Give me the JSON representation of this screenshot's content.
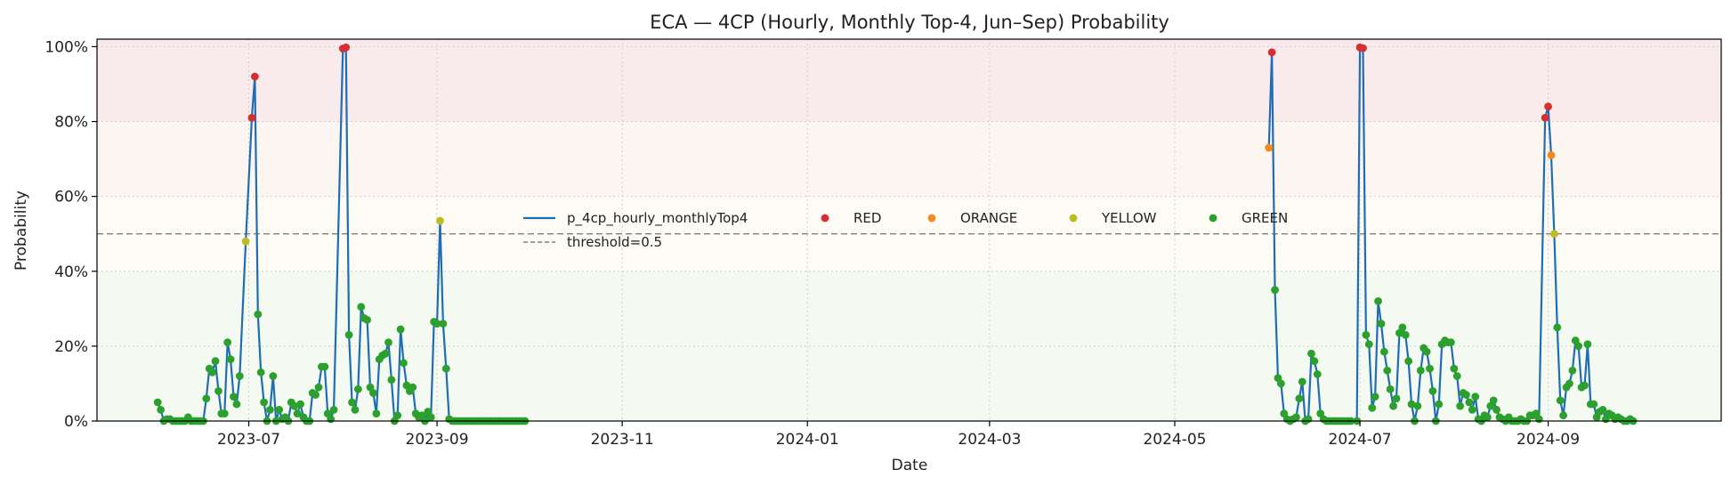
{
  "chart_data": {
    "type": "scatter",
    "title": "ECA — 4CP (Hourly, Monthly Top-4, Jun–Sep) Probability",
    "xlabel": "Date",
    "ylabel": "Probability",
    "xlim": [
      "2023-05-12",
      "2024-10-28"
    ],
    "ylim": [
      0,
      1.02
    ],
    "grid": true,
    "legend_position": "center",
    "x_ticks": [
      {
        "date": "2023-07-01",
        "label": "2023-07"
      },
      {
        "date": "2023-09-01",
        "label": "2023-09"
      },
      {
        "date": "2023-11-01",
        "label": "2023-11"
      },
      {
        "date": "2024-01-01",
        "label": "2024-01"
      },
      {
        "date": "2024-03-01",
        "label": "2024-03"
      },
      {
        "date": "2024-05-01",
        "label": "2024-05"
      },
      {
        "date": "2024-07-01",
        "label": "2024-07"
      },
      {
        "date": "2024-09-01",
        "label": "2024-09"
      }
    ],
    "y_ticks": [
      {
        "value": 0,
        "label": "0%"
      },
      {
        "value": 0.2,
        "label": "20%"
      },
      {
        "value": 0.4,
        "label": "40%"
      },
      {
        "value": 0.6,
        "label": "60%"
      },
      {
        "value": 0.8,
        "label": "80%"
      },
      {
        "value": 1.0,
        "label": "100%"
      }
    ],
    "bands": [
      {
        "from": 0.0,
        "to": 0.4,
        "color": "#f4f9f2"
      },
      {
        "from": 0.4,
        "to": 0.6,
        "color": "#fdfbf3"
      },
      {
        "from": 0.6,
        "to": 0.8,
        "color": "#fdf6f0"
      },
      {
        "from": 0.8,
        "to": 1.02,
        "color": "#f9ebec"
      }
    ],
    "threshold": {
      "value": 0.5,
      "label": "threshold=0.5",
      "color": "#808080"
    },
    "line_series": {
      "name": "p_4cp_hourly_monthlyTop4",
      "color": "#1f6db5"
    },
    "categories_legend": [
      {
        "name": "RED",
        "color": "#d62f2f"
      },
      {
        "name": "ORANGE",
        "color": "#f5891f"
      },
      {
        "name": "YELLOW",
        "color": "#bcbd22"
      },
      {
        "name": "GREEN",
        "color": "#2ca02c"
      }
    ],
    "points": [
      [
        "2023-06-01",
        0.05
      ],
      [
        "2023-06-02",
        0.03
      ],
      [
        "2023-06-03",
        0.0
      ],
      [
        "2023-06-04",
        0.005
      ],
      [
        "2023-06-05",
        0.005
      ],
      [
        "2023-06-06",
        0.0
      ],
      [
        "2023-06-07",
        0.0
      ],
      [
        "2023-06-08",
        0.0
      ],
      [
        "2023-06-09",
        0.0
      ],
      [
        "2023-06-10",
        0.0
      ],
      [
        "2023-06-11",
        0.01
      ],
      [
        "2023-06-12",
        0.0
      ],
      [
        "2023-06-13",
        0.0
      ],
      [
        "2023-06-14",
        0.0
      ],
      [
        "2023-06-15",
        0.0
      ],
      [
        "2023-06-16",
        0.0
      ],
      [
        "2023-06-17",
        0.06
      ],
      [
        "2023-06-18",
        0.14
      ],
      [
        "2023-06-19",
        0.13
      ],
      [
        "2023-06-20",
        0.16
      ],
      [
        "2023-06-21",
        0.08
      ],
      [
        "2023-06-22",
        0.02
      ],
      [
        "2023-06-23",
        0.02
      ],
      [
        "2023-06-24",
        0.21
      ],
      [
        "2023-06-25",
        0.165
      ],
      [
        "2023-06-26",
        0.065
      ],
      [
        "2023-06-27",
        0.045
      ],
      [
        "2023-06-28",
        0.12
      ],
      [
        "2023-06-30",
        0.48
      ],
      [
        "2023-07-02",
        0.81
      ],
      [
        "2023-07-03",
        0.92
      ],
      [
        "2023-07-04",
        0.285
      ],
      [
        "2023-07-05",
        0.13
      ],
      [
        "2023-07-06",
        0.05
      ],
      [
        "2023-07-07",
        0.0
      ],
      [
        "2023-07-08",
        0.03
      ],
      [
        "2023-07-09",
        0.12
      ],
      [
        "2023-07-10",
        0.0
      ],
      [
        "2023-07-11",
        0.03
      ],
      [
        "2023-07-12",
        0.005
      ],
      [
        "2023-07-13",
        0.01
      ],
      [
        "2023-07-14",
        0.0
      ],
      [
        "2023-07-15",
        0.05
      ],
      [
        "2023-07-16",
        0.04
      ],
      [
        "2023-07-17",
        0.02
      ],
      [
        "2023-07-18",
        0.045
      ],
      [
        "2023-07-19",
        0.01
      ],
      [
        "2023-07-20",
        0.0
      ],
      [
        "2023-07-21",
        0.0
      ],
      [
        "2023-07-22",
        0.075
      ],
      [
        "2023-07-23",
        0.07
      ],
      [
        "2023-07-24",
        0.09
      ],
      [
        "2023-07-25",
        0.145
      ],
      [
        "2023-07-26",
        0.145
      ],
      [
        "2023-07-27",
        0.02
      ],
      [
        "2023-07-28",
        0.005
      ],
      [
        "2023-07-29",
        0.03
      ],
      [
        "2023-08-01",
        0.995
      ],
      [
        "2023-08-02",
        0.998
      ],
      [
        "2023-08-03",
        0.23
      ],
      [
        "2023-08-04",
        0.05
      ],
      [
        "2023-08-05",
        0.03
      ],
      [
        "2023-08-06",
        0.085
      ],
      [
        "2023-08-07",
        0.305
      ],
      [
        "2023-08-08",
        0.275
      ],
      [
        "2023-08-09",
        0.27
      ],
      [
        "2023-08-10",
        0.09
      ],
      [
        "2023-08-11",
        0.075
      ],
      [
        "2023-08-12",
        0.02
      ],
      [
        "2023-08-13",
        0.165
      ],
      [
        "2023-08-14",
        0.175
      ],
      [
        "2023-08-15",
        0.18
      ],
      [
        "2023-08-16",
        0.21
      ],
      [
        "2023-08-17",
        0.11
      ],
      [
        "2023-08-18",
        0.0
      ],
      [
        "2023-08-19",
        0.015
      ],
      [
        "2023-08-20",
        0.245
      ],
      [
        "2023-08-21",
        0.155
      ],
      [
        "2023-08-22",
        0.095
      ],
      [
        "2023-08-23",
        0.08
      ],
      [
        "2023-08-24",
        0.09
      ],
      [
        "2023-08-25",
        0.02
      ],
      [
        "2023-08-26",
        0.01
      ],
      [
        "2023-08-27",
        0.015
      ],
      [
        "2023-08-28",
        0.0
      ],
      [
        "2023-08-29",
        0.025
      ],
      [
        "2023-08-30",
        0.01
      ],
      [
        "2023-08-31",
        0.265
      ],
      [
        "2023-09-01",
        0.26
      ],
      [
        "2023-09-02",
        0.535
      ],
      [
        "2023-09-03",
        0.26
      ],
      [
        "2023-09-04",
        0.14
      ],
      [
        "2023-09-05",
        0.005
      ],
      [
        "2023-09-06",
        0.0
      ],
      [
        "2023-09-07",
        0.0
      ],
      [
        "2023-09-08",
        0.0
      ],
      [
        "2023-09-09",
        0.0
      ],
      [
        "2023-09-10",
        0.0
      ],
      [
        "2023-09-11",
        0.0
      ],
      [
        "2023-09-12",
        0.0
      ],
      [
        "2023-09-13",
        0.0
      ],
      [
        "2023-09-14",
        0.0
      ],
      [
        "2023-09-15",
        0.0
      ],
      [
        "2023-09-16",
        0.0
      ],
      [
        "2023-09-17",
        0.0
      ],
      [
        "2023-09-18",
        0.0
      ],
      [
        "2023-09-19",
        0.0
      ],
      [
        "2023-09-20",
        0.0
      ],
      [
        "2023-09-21",
        0.0
      ],
      [
        "2023-09-22",
        0.0
      ],
      [
        "2023-09-23",
        0.0
      ],
      [
        "2023-09-24",
        0.0
      ],
      [
        "2023-09-25",
        0.0
      ],
      [
        "2023-09-26",
        0.0
      ],
      [
        "2023-09-27",
        0.0
      ],
      [
        "2023-09-28",
        0.0
      ],
      [
        "2023-09-29",
        0.0
      ],
      [
        "2023-09-30",
        0.0
      ],
      [
        "2024-06-01",
        0.73
      ],
      [
        "2024-06-02",
        0.985
      ],
      [
        "2024-06-03",
        0.35
      ],
      [
        "2024-06-04",
        0.115
      ],
      [
        "2024-06-05",
        0.1
      ],
      [
        "2024-06-06",
        0.02
      ],
      [
        "2024-06-07",
        0.005
      ],
      [
        "2024-06-08",
        0.0
      ],
      [
        "2024-06-09",
        0.005
      ],
      [
        "2024-06-10",
        0.01
      ],
      [
        "2024-06-11",
        0.06
      ],
      [
        "2024-06-12",
        0.105
      ],
      [
        "2024-06-13",
        0.0
      ],
      [
        "2024-06-14",
        0.005
      ],
      [
        "2024-06-15",
        0.18
      ],
      [
        "2024-06-16",
        0.16
      ],
      [
        "2024-06-17",
        0.125
      ],
      [
        "2024-06-18",
        0.02
      ],
      [
        "2024-06-19",
        0.005
      ],
      [
        "2024-06-20",
        0.0
      ],
      [
        "2024-06-21",
        0.0
      ],
      [
        "2024-06-22",
        0.0
      ],
      [
        "2024-06-23",
        0.0
      ],
      [
        "2024-06-24",
        0.0
      ],
      [
        "2024-06-25",
        0.0
      ],
      [
        "2024-06-26",
        0.0
      ],
      [
        "2024-06-27",
        0.0
      ],
      [
        "2024-06-28",
        0.0
      ],
      [
        "2024-06-30",
        0.0
      ],
      [
        "2024-07-01",
        0.998
      ],
      [
        "2024-07-02",
        0.996
      ],
      [
        "2024-07-03",
        0.23
      ],
      [
        "2024-07-04",
        0.205
      ],
      [
        "2024-07-05",
        0.035
      ],
      [
        "2024-07-06",
        0.065
      ],
      [
        "2024-07-07",
        0.32
      ],
      [
        "2024-07-08",
        0.26
      ],
      [
        "2024-07-09",
        0.185
      ],
      [
        "2024-07-10",
        0.135
      ],
      [
        "2024-07-11",
        0.085
      ],
      [
        "2024-07-12",
        0.04
      ],
      [
        "2024-07-13",
        0.06
      ],
      [
        "2024-07-14",
        0.235
      ],
      [
        "2024-07-15",
        0.25
      ],
      [
        "2024-07-16",
        0.23
      ],
      [
        "2024-07-17",
        0.16
      ],
      [
        "2024-07-18",
        0.045
      ],
      [
        "2024-07-19",
        0.0
      ],
      [
        "2024-07-20",
        0.04
      ],
      [
        "2024-07-21",
        0.135
      ],
      [
        "2024-07-22",
        0.195
      ],
      [
        "2024-07-23",
        0.185
      ],
      [
        "2024-07-24",
        0.14
      ],
      [
        "2024-07-25",
        0.08
      ],
      [
        "2024-07-26",
        0.0
      ],
      [
        "2024-07-27",
        0.045
      ],
      [
        "2024-07-28",
        0.205
      ],
      [
        "2024-07-29",
        0.215
      ],
      [
        "2024-07-30",
        0.21
      ],
      [
        "2024-07-31",
        0.21
      ],
      [
        "2024-08-01",
        0.14
      ],
      [
        "2024-08-02",
        0.12
      ],
      [
        "2024-08-03",
        0.04
      ],
      [
        "2024-08-04",
        0.075
      ],
      [
        "2024-08-05",
        0.07
      ],
      [
        "2024-08-06",
        0.05
      ],
      [
        "2024-08-07",
        0.03
      ],
      [
        "2024-08-08",
        0.065
      ],
      [
        "2024-08-09",
        0.005
      ],
      [
        "2024-08-10",
        0.0
      ],
      [
        "2024-08-11",
        0.015
      ],
      [
        "2024-08-12",
        0.01
      ],
      [
        "2024-08-13",
        0.04
      ],
      [
        "2024-08-14",
        0.055
      ],
      [
        "2024-08-15",
        0.03
      ],
      [
        "2024-08-16",
        0.01
      ],
      [
        "2024-08-17",
        0.005
      ],
      [
        "2024-08-18",
        0.0
      ],
      [
        "2024-08-19",
        0.01
      ],
      [
        "2024-08-20",
        0.0
      ],
      [
        "2024-08-21",
        0.0
      ],
      [
        "2024-08-22",
        0.0
      ],
      [
        "2024-08-23",
        0.005
      ],
      [
        "2024-08-24",
        0.0
      ],
      [
        "2024-08-25",
        0.0
      ],
      [
        "2024-08-26",
        0.015
      ],
      [
        "2024-08-27",
        0.015
      ],
      [
        "2024-08-28",
        0.02
      ],
      [
        "2024-08-29",
        0.005
      ],
      [
        "2024-08-31",
        0.81
      ],
      [
        "2024-09-01",
        0.84
      ],
      [
        "2024-09-02",
        0.71
      ],
      [
        "2024-09-03",
        0.5
      ],
      [
        "2024-09-04",
        0.25
      ],
      [
        "2024-09-05",
        0.055
      ],
      [
        "2024-09-06",
        0.015
      ],
      [
        "2024-09-07",
        0.09
      ],
      [
        "2024-09-08",
        0.1
      ],
      [
        "2024-09-09",
        0.135
      ],
      [
        "2024-09-10",
        0.215
      ],
      [
        "2024-09-11",
        0.2
      ],
      [
        "2024-09-12",
        0.09
      ],
      [
        "2024-09-13",
        0.095
      ],
      [
        "2024-09-14",
        0.205
      ],
      [
        "2024-09-15",
        0.045
      ],
      [
        "2024-09-16",
        0.045
      ],
      [
        "2024-09-17",
        0.01
      ],
      [
        "2024-09-18",
        0.025
      ],
      [
        "2024-09-19",
        0.03
      ],
      [
        "2024-09-20",
        0.005
      ],
      [
        "2024-09-21",
        0.02
      ],
      [
        "2024-09-22",
        0.015
      ],
      [
        "2024-09-23",
        0.005
      ],
      [
        "2024-09-24",
        0.01
      ],
      [
        "2024-09-25",
        0.005
      ],
      [
        "2024-09-26",
        0.0
      ],
      [
        "2024-09-27",
        0.0
      ],
      [
        "2024-09-28",
        0.005
      ],
      [
        "2024-09-29",
        0.0
      ]
    ],
    "category_rule": [
      {
        "name": "RED",
        "min": 0.75
      },
      {
        "name": "ORANGE",
        "min": 0.6
      },
      {
        "name": "YELLOW",
        "min": 0.45
      },
      {
        "name": "GREEN",
        "min": 0.0
      }
    ]
  }
}
